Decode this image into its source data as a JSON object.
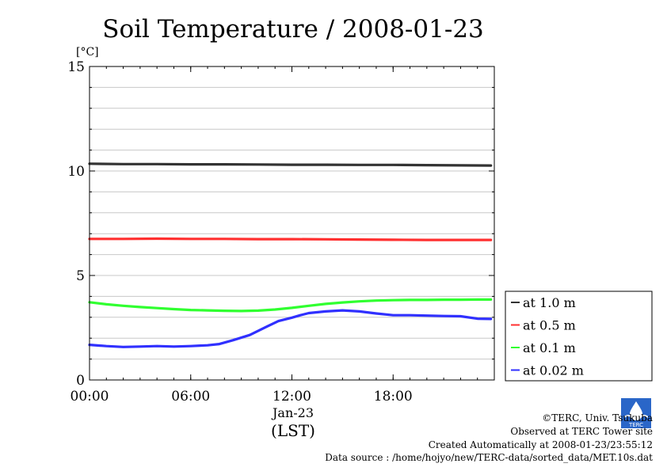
{
  "chart_data": {
    "type": "line",
    "title": "Soil Temperature / 2008-01-23",
    "ylabel": "[°C]",
    "xlabel": "(LST)",
    "date_label": "Jan-23",
    "xlim": [
      0,
      24
    ],
    "ylim": [
      0,
      15
    ],
    "x_ticks": [
      {
        "value": 0,
        "label": "00:00"
      },
      {
        "value": 6,
        "label": "06:00"
      },
      {
        "value": 12,
        "label": "12:00"
      },
      {
        "value": 18,
        "label": "18:00"
      }
    ],
    "y_ticks": [
      {
        "value": 0,
        "label": "0"
      },
      {
        "value": 5,
        "label": "5"
      },
      {
        "value": 10,
        "label": "10"
      },
      {
        "value": 15,
        "label": "15"
      }
    ],
    "grid": true,
    "legend_position": "right-bottom, outside plot",
    "series": [
      {
        "name": "at 1.0 m",
        "color": "#333333",
        "x": [
          0,
          2,
          4,
          6,
          8,
          10,
          12,
          14,
          16,
          18,
          20,
          22,
          23.8
        ],
        "y": [
          10.35,
          10.33,
          10.33,
          10.32,
          10.32,
          10.31,
          10.3,
          10.3,
          10.29,
          10.29,
          10.28,
          10.27,
          10.26
        ]
      },
      {
        "name": "at 0.5 m",
        "color": "#ff3030",
        "x": [
          0,
          2,
          4,
          6,
          8,
          10,
          12,
          14,
          16,
          18,
          20,
          22,
          23.8
        ],
        "y": [
          6.75,
          6.75,
          6.76,
          6.75,
          6.75,
          6.74,
          6.74,
          6.73,
          6.72,
          6.71,
          6.7,
          6.7,
          6.7
        ]
      },
      {
        "name": "at 0.1 m",
        "color": "#30ff30",
        "x": [
          0,
          1,
          2,
          3,
          4,
          5,
          6,
          7,
          8,
          9,
          10,
          11,
          12,
          13,
          14,
          15,
          16,
          17,
          18,
          19,
          20,
          21,
          22,
          23,
          23.8
        ],
        "y": [
          3.72,
          3.62,
          3.55,
          3.49,
          3.44,
          3.39,
          3.35,
          3.33,
          3.31,
          3.3,
          3.32,
          3.37,
          3.45,
          3.55,
          3.64,
          3.71,
          3.76,
          3.8,
          3.82,
          3.83,
          3.83,
          3.84,
          3.84,
          3.85,
          3.85
        ]
      },
      {
        "name": "at 0.02 m",
        "color": "#3030ff",
        "x": [
          0,
          1,
          2,
          3,
          4,
          5,
          6,
          7,
          7.7,
          8.5,
          9.5,
          10.5,
          11.2,
          12,
          12.5,
          13,
          14,
          15,
          16,
          17,
          18,
          19,
          20,
          21,
          22,
          23,
          23.8
        ],
        "y": [
          1.68,
          1.62,
          1.58,
          1.6,
          1.62,
          1.6,
          1.62,
          1.66,
          1.72,
          1.9,
          2.15,
          2.55,
          2.82,
          2.98,
          3.1,
          3.2,
          3.28,
          3.33,
          3.28,
          3.18,
          3.1,
          3.1,
          3.08,
          3.06,
          3.05,
          2.93,
          2.92
        ]
      }
    ]
  },
  "footer": {
    "copyright": "©TERC, Univ. Tsukuba",
    "observed": "Observed at TERC Tower site",
    "created": "Created Automatically at 2008-01-23/23:55:12",
    "source": "Data source : /home/hojyo/new/TERC-data/sorted_data/MET.10s.dat",
    "logo_text": "TERC"
  }
}
